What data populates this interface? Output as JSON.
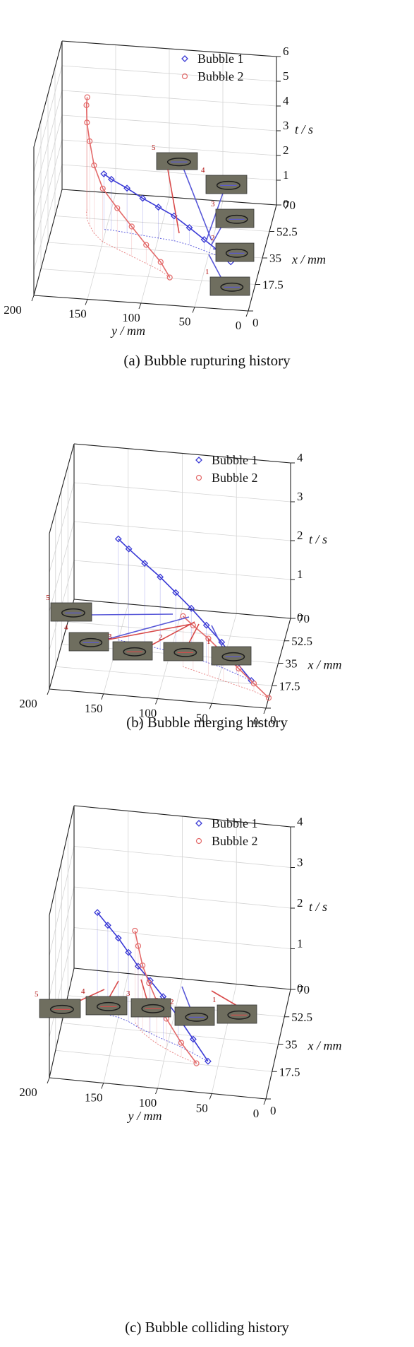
{
  "colors": {
    "bubble1": "#3a3ad6",
    "bubble2": "#e36a6a",
    "snapshot_bg": "#6f6e5f"
  },
  "chart_data": [
    {
      "id": "a",
      "type": "scatter",
      "title": "",
      "caption": "(a) Bubble rupturing history",
      "xlabel": "x / mm",
      "ylabel": "y / mm",
      "zlabel": "t / s",
      "x_ticks": [
        "70",
        "52.5",
        "35",
        "17.5",
        "0"
      ],
      "y_ticks": [
        "200",
        "150",
        "100",
        "50",
        "0"
      ],
      "t_ticks": [
        "0",
        "1",
        "2",
        "3",
        "4",
        "5",
        "6"
      ],
      "xlim": [
        0,
        70
      ],
      "ylim": [
        0,
        200
      ],
      "tlim": [
        0,
        6
      ],
      "grid": true,
      "legend_placement": "top-right",
      "legend": [
        "Bubble 1",
        "Bubble 2"
      ],
      "snapshot_labels": [
        "5",
        "4",
        "3",
        "2",
        "1"
      ],
      "series": [
        {
          "name": "Bubble 1",
          "marker": "diamond",
          "y": [
            28,
            40,
            55,
            70,
            85,
            100,
            115,
            130,
            145,
            152
          ],
          "x": [
            31,
            34,
            37,
            40,
            42,
            43,
            44,
            45,
            46,
            46
          ],
          "t": [
            0.0,
            0.2,
            0.45,
            0.7,
            1.0,
            1.25,
            1.5,
            1.8,
            2.05,
            2.25
          ]
        },
        {
          "name": "Bubble 2",
          "marker": "circle",
          "y": [
            80,
            90,
            105,
            120,
            135,
            150,
            160,
            166,
            170,
            172,
            172
          ],
          "x": [
            18,
            22,
            26,
            30,
            34,
            38,
            43,
            48,
            52,
            56,
            58
          ],
          "t": [
            0.0,
            0.35,
            0.75,
            1.2,
            1.65,
            2.15,
            2.75,
            3.4,
            3.9,
            4.35,
            4.55
          ]
        }
      ]
    },
    {
      "id": "b",
      "type": "scatter",
      "title": "",
      "caption": "(b) Bubble merging history",
      "xlabel": "x / mm",
      "ylabel": "y / mm",
      "zlabel": "t / s",
      "x_ticks": [
        "70",
        "52.5",
        "35",
        "17.5",
        "0"
      ],
      "y_ticks": [
        "200",
        "150",
        "100",
        "50",
        "0"
      ],
      "t_ticks": [
        "0",
        "1",
        "2",
        "3",
        "4"
      ],
      "xlim": [
        0,
        70
      ],
      "ylim": [
        0,
        200
      ],
      "tlim": [
        0,
        4
      ],
      "grid": true,
      "legend_placement": "top-right",
      "legend": [
        "Bubble 1",
        "Bubble 2"
      ],
      "snapshot_labels": [
        "5",
        "4",
        "3",
        "2",
        "1"
      ],
      "series": [
        {
          "name": "Bubble 1",
          "marker": "diamond",
          "y": [
            20,
            35,
            50,
            65,
            80,
            95,
            110,
            125,
            140,
            150
          ],
          "x": [
            20,
            24,
            28,
            31,
            34,
            36,
            38,
            40,
            41,
            42
          ],
          "t": [
            0.0,
            0.3,
            0.65,
            0.95,
            1.25,
            1.55,
            1.85,
            2.1,
            2.4,
            2.6
          ]
        },
        {
          "name": "Bubble 2",
          "marker": "circle",
          "y": [
            0,
            15,
            30,
            45,
            60,
            75,
            85
          ],
          "x": [
            8,
            12,
            15,
            18,
            21,
            24,
            26
          ],
          "t": [
            0.0,
            0.2,
            0.45,
            0.7,
            0.95,
            1.15,
            1.3
          ]
        }
      ]
    },
    {
      "id": "c",
      "type": "scatter",
      "title": "",
      "caption": "(c) Bubble colliding history",
      "xlabel": "x / mm",
      "ylabel": "y / mm",
      "zlabel": "t / s",
      "x_ticks": [
        "70",
        "52.5",
        "35",
        "17.5",
        "0"
      ],
      "y_ticks": [
        "200",
        "150",
        "100",
        "50",
        "0"
      ],
      "t_ticks": [
        "0",
        "1",
        "2",
        "3",
        "4"
      ],
      "xlim": [
        0,
        70
      ],
      "ylim": [
        0,
        200
      ],
      "tlim": [
        0,
        4
      ],
      "grid": true,
      "legend_placement": "top-right",
      "legend": [
        "Bubble 1",
        "Bubble 2"
      ],
      "snapshot_labels": [
        "5",
        "4",
        "3",
        "2",
        "1"
      ],
      "series": [
        {
          "name": "Bubble 1",
          "marker": "diamond",
          "y": [
            60,
            75,
            90,
            105,
            118,
            130,
            140,
            150,
            160,
            170
          ],
          "x": [
            20,
            24,
            28,
            31,
            34,
            37,
            40,
            42,
            43,
            44
          ],
          "t": [
            0.0,
            0.35,
            0.7,
            1.05,
            1.3,
            1.5,
            1.7,
            1.95,
            2.2,
            2.45
          ]
        },
        {
          "name": "Bubble 2",
          "marker": "circle",
          "y": [
            70,
            85,
            100,
            110,
            118,
            125,
            130,
            134
          ],
          "x": [
            18,
            21,
            25,
            28,
            31,
            34,
            37,
            40
          ],
          "t": [
            0.0,
            0.35,
            0.75,
            1.05,
            1.35,
            1.65,
            2.0,
            2.25
          ]
        }
      ]
    }
  ]
}
